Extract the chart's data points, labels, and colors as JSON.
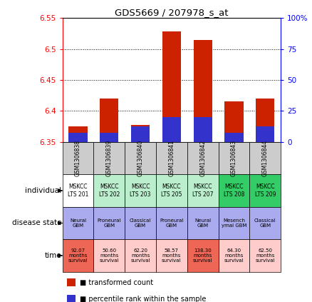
{
  "title": "GDS5669 / 207978_s_at",
  "samples": [
    "GSM1306838",
    "GSM1306839",
    "GSM1306840",
    "GSM1306841",
    "GSM1306842",
    "GSM1306843",
    "GSM1306844"
  ],
  "bar_values": [
    6.375,
    6.42,
    6.378,
    6.528,
    6.515,
    6.415,
    6.42
  ],
  "percentile_values": [
    6.365,
    6.365,
    6.375,
    6.39,
    6.39,
    6.365,
    6.375
  ],
  "ylim_left": [
    6.35,
    6.55
  ],
  "ylim_right": [
    0,
    100
  ],
  "yticks_left": [
    6.35,
    6.4,
    6.45,
    6.5,
    6.55
  ],
  "yticks_right": [
    0,
    25,
    50,
    75,
    100
  ],
  "bar_color": "#cc2200",
  "percentile_color": "#3333cc",
  "individual_labels": [
    "MSKCC\nLTS 201",
    "MSKCC\nLTS 202",
    "MSKCC\nLTS 203",
    "MSKCC\nLTS 205",
    "MSKCC\nLTS 207",
    "MSKCC\nLTS 208",
    "MSKCC\nLTS 209"
  ],
  "individual_colors": [
    "#ffffff",
    "#bbeecc",
    "#bbeecc",
    "#bbeecc",
    "#bbeecc",
    "#33cc66",
    "#33cc66"
  ],
  "disease_labels": [
    "Neural\nGBM",
    "Proneural\nGBM",
    "Classical\nGBM",
    "Proneural\nGBM",
    "Neural\nGBM",
    "Mesench\nymal GBM",
    "Classical\nGBM"
  ],
  "disease_colors": [
    "#aaaaee",
    "#aaaaee",
    "#aaaaee",
    "#aaaaee",
    "#aaaaee",
    "#aaaaee",
    "#aaaaee"
  ],
  "time_labels": [
    "92.07\nmonths\nsurvival",
    "50.60\nmonths\nsurvival",
    "62.20\nmonths\nsurvival",
    "58.57\nmonths\nsurvival",
    "138.30\nmonths\nsurvival",
    "64.30\nmonths\nsurvival",
    "62.50\nmonths\nsurvival"
  ],
  "time_colors": [
    "#ee6655",
    "#ffcccc",
    "#ffcccc",
    "#ffcccc",
    "#ee6655",
    "#ffcccc",
    "#ffcccc"
  ],
  "sample_bg_color": "#cccccc",
  "row_label_names": [
    "individual",
    "disease state",
    "time"
  ],
  "legend_items": [
    {
      "color": "#cc2200",
      "label": "transformed count"
    },
    {
      "color": "#3333cc",
      "label": "percentile rank within the sample"
    }
  ]
}
